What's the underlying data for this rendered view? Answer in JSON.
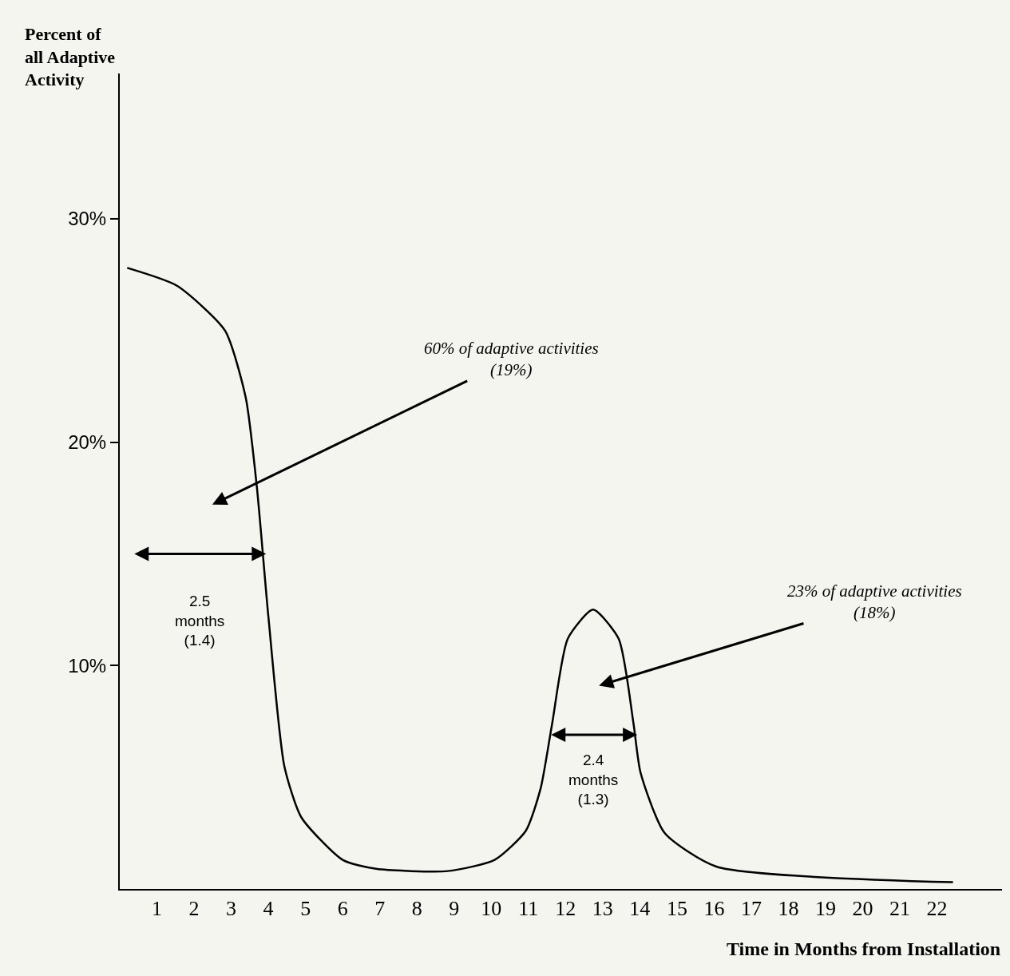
{
  "chart_data": {
    "type": "line",
    "xlabel": "Time in Months from Installation",
    "ylabel": "Percent of\nall Adaptive\nActivity",
    "x": [
      0.2,
      1.54,
      2.83,
      3.39,
      3.69,
      4.0,
      4.43,
      4.89,
      6.0,
      6.9,
      8.83,
      10.09,
      10.93,
      11.33,
      11.64,
      12.06,
      12.74,
      13.43,
      13.83,
      14.02,
      14.67,
      16.06,
      22.43
    ],
    "series": [
      {
        "color": "#000000",
        "values": [
          27.8,
          27.0,
          25.0,
          22.0,
          18.0,
          12.2,
          5.5,
          3.2,
          1.3,
          0.9,
          0.8,
          1.3,
          2.6,
          4.5,
          7.4,
          11.2,
          12.5,
          11.2,
          7.4,
          5.2,
          2.5,
          1.0,
          0.3
        ]
      }
    ],
    "xlim": [
      0,
      23.75
    ],
    "xticks": [
      1,
      2,
      3,
      4,
      5,
      6,
      7,
      8,
      9,
      10,
      11,
      12,
      13,
      14,
      15,
      16,
      17,
      18,
      19,
      20,
      21,
      22
    ],
    "ylim": [
      0,
      36.5
    ],
    "yticks": [
      {
        "value": 10,
        "label": "10%"
      },
      {
        "value": 20,
        "label": "20%"
      },
      {
        "value": 30,
        "label": "30%"
      }
    ],
    "annotations": [
      "60% of adaptive activities\n(19%)",
      "23% of adaptive activities\n(18%)",
      "2.5\nmonths\n(1.4)",
      "2.4\nmonths\n(1.3)"
    ],
    "grid": false,
    "marker": "none",
    "line_style": "solid"
  }
}
